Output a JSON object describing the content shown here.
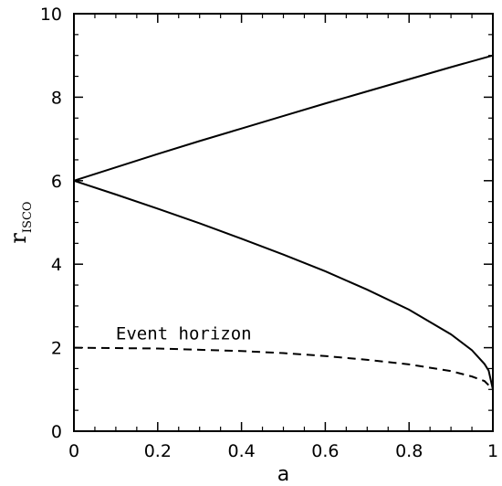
{
  "chart_data": {
    "type": "line",
    "title": "",
    "xlabel": "a",
    "ylabel": "r",
    "ylabel_subscript": "ISCO",
    "xlim": [
      0,
      1
    ],
    "ylim": [
      0,
      10
    ],
    "xticks": [
      0,
      0.2,
      0.4,
      0.6,
      0.8,
      1
    ],
    "xtick_labels": [
      "0",
      "0.2",
      "0.4",
      "0.6",
      "0.8",
      "1"
    ],
    "yticks": [
      0,
      2,
      4,
      6,
      8,
      10
    ],
    "ytick_labels": [
      "0",
      "2",
      "4",
      "6",
      "8",
      "10"
    ],
    "grid": false,
    "annotations": [
      {
        "text": "Event horizon",
        "x": 0.1,
        "y": 2.2
      }
    ],
    "series": [
      {
        "style": "solid",
        "x": [
          0,
          0.1,
          0.2,
          0.3,
          0.4,
          0.5,
          0.6,
          0.7,
          0.8,
          0.9,
          1.0
        ],
        "y": [
          6.0,
          6.32,
          6.64,
          6.95,
          7.25,
          7.55,
          7.85,
          8.14,
          8.43,
          8.72,
          9.0
        ]
      },
      {
        "style": "solid",
        "x": [
          0,
          0.1,
          0.2,
          0.3,
          0.4,
          0.5,
          0.6,
          0.7,
          0.8,
          0.9,
          0.95,
          0.98,
          0.99,
          1.0
        ],
        "y": [
          6.0,
          5.67,
          5.33,
          4.98,
          4.61,
          4.23,
          3.83,
          3.39,
          2.91,
          2.32,
          1.94,
          1.61,
          1.45,
          1.0
        ]
      },
      {
        "style": "dashed",
        "x": [
          0,
          0.1,
          0.2,
          0.3,
          0.4,
          0.5,
          0.6,
          0.7,
          0.8,
          0.9,
          0.95,
          0.98,
          1.0
        ],
        "y": [
          2.0,
          1.99,
          1.98,
          1.95,
          1.92,
          1.87,
          1.8,
          1.71,
          1.6,
          1.44,
          1.31,
          1.2,
          1.0
        ]
      }
    ]
  }
}
